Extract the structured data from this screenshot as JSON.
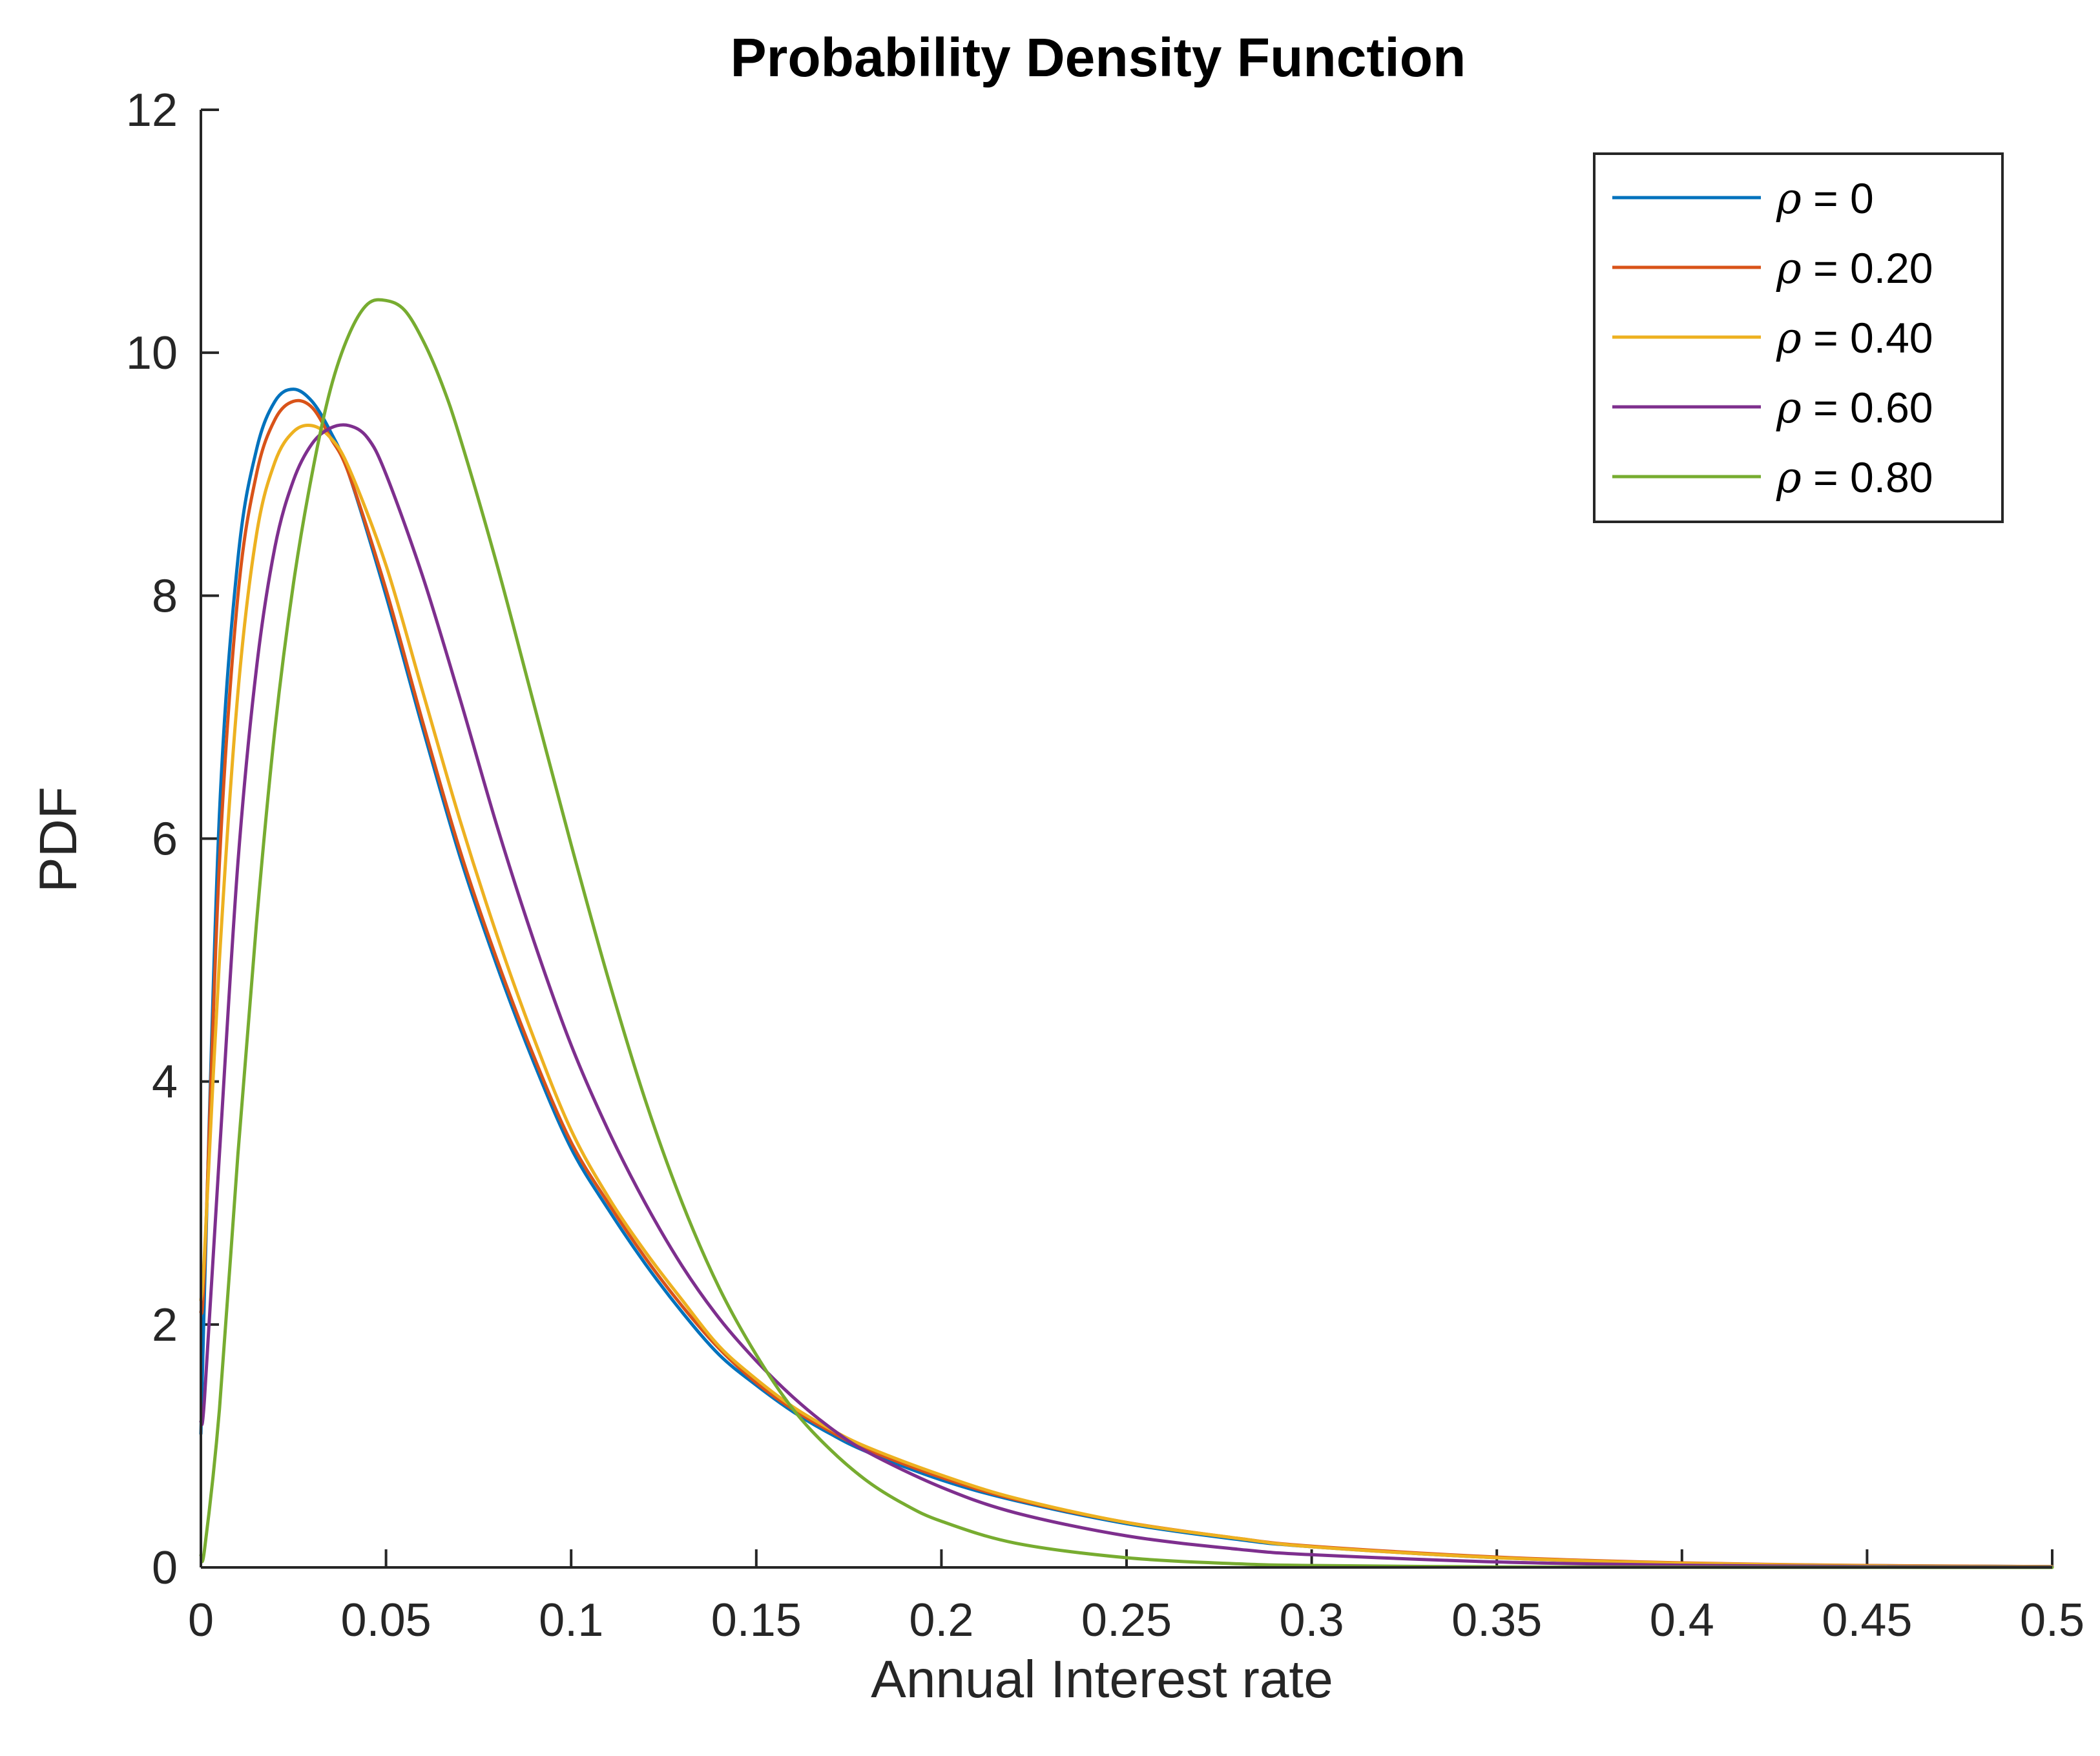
{
  "chart_data": {
    "type": "line",
    "title": "Probability Density Function",
    "xlabel": "Annual Interest rate",
    "ylabel": "PDF",
    "xlim": [
      0,
      0.5
    ],
    "ylim": [
      0,
      12
    ],
    "xticks": [
      0,
      0.05,
      0.1,
      0.15,
      0.2,
      0.25,
      0.3,
      0.35,
      0.4,
      0.45,
      0.5
    ],
    "xtick_labels": [
      "0",
      "0.05",
      "0.1",
      "0.15",
      "0.2",
      "0.25",
      "0.3",
      "0.35",
      "0.4",
      "0.45",
      "0.5"
    ],
    "yticks": [
      0,
      2,
      4,
      6,
      8,
      10,
      12
    ],
    "ytick_labels": [
      "0",
      "2",
      "4",
      "6",
      "8",
      "10",
      "12"
    ],
    "grid": false,
    "legend_position": "top-right",
    "series": [
      {
        "name": "ρ = 0",
        "label_symbol": "ρ",
        "label_value": " = 0",
        "color": "#0072BD",
        "x": [
          0,
          0.001,
          0.005,
          0.01,
          0.015,
          0.02,
          0.025,
          0.03,
          0.035,
          0.04,
          0.05,
          0.06,
          0.07,
          0.08,
          0.09,
          0.1,
          0.11,
          0.12,
          0.13,
          0.14,
          0.15,
          0.16,
          0.17,
          0.18,
          0.2,
          0.22,
          0.25,
          0.28,
          0.3,
          0.35,
          0.4,
          0.45,
          0.5
        ],
        "y": [
          1.1,
          2.3,
          6.2,
          8.3,
          9.2,
          9.6,
          9.7,
          9.6,
          9.35,
          9.0,
          8.0,
          6.9,
          5.85,
          4.95,
          4.15,
          3.45,
          2.95,
          2.5,
          2.1,
          1.75,
          1.5,
          1.28,
          1.1,
          0.95,
          0.72,
          0.55,
          0.36,
          0.23,
          0.17,
          0.08,
          0.035,
          0.015,
          0.007
        ]
      },
      {
        "name": "ρ = 0.20",
        "label_symbol": "ρ",
        "label_value": " = 0.20",
        "color": "#D95319",
        "x": [
          0,
          0.001,
          0.005,
          0.01,
          0.015,
          0.02,
          0.025,
          0.03,
          0.035,
          0.04,
          0.05,
          0.06,
          0.07,
          0.08,
          0.09,
          0.1,
          0.11,
          0.12,
          0.13,
          0.14,
          0.15,
          0.16,
          0.17,
          0.18,
          0.2,
          0.22,
          0.25,
          0.28,
          0.3,
          0.35,
          0.4,
          0.45,
          0.5
        ],
        "y": [
          2.1,
          2.5,
          5.8,
          8.0,
          9.0,
          9.45,
          9.6,
          9.55,
          9.3,
          9.0,
          8.05,
          6.95,
          5.9,
          5.0,
          4.2,
          3.5,
          3.0,
          2.55,
          2.15,
          1.8,
          1.52,
          1.3,
          1.12,
          0.97,
          0.74,
          0.56,
          0.37,
          0.24,
          0.175,
          0.085,
          0.037,
          0.016,
          0.007
        ]
      },
      {
        "name": "ρ = 0.40",
        "label_symbol": "ρ",
        "label_value": " = 0.40",
        "color": "#EDB120",
        "x": [
          0,
          0.001,
          0.005,
          0.01,
          0.015,
          0.02,
          0.025,
          0.03,
          0.035,
          0.04,
          0.05,
          0.06,
          0.07,
          0.08,
          0.09,
          0.1,
          0.11,
          0.12,
          0.13,
          0.14,
          0.15,
          0.16,
          0.17,
          0.18,
          0.2,
          0.22,
          0.25,
          0.28,
          0.3,
          0.35,
          0.4,
          0.45,
          0.5
        ],
        "y": [
          2.2,
          2.6,
          5.0,
          7.2,
          8.5,
          9.1,
          9.35,
          9.4,
          9.3,
          9.05,
          8.25,
          7.2,
          6.15,
          5.2,
          4.35,
          3.6,
          3.05,
          2.6,
          2.2,
          1.82,
          1.55,
          1.32,
          1.14,
          0.99,
          0.76,
          0.57,
          0.37,
          0.24,
          0.17,
          0.08,
          0.034,
          0.014,
          0.006
        ]
      },
      {
        "name": "ρ = 0.60",
        "label_symbol": "ρ",
        "label_value": " = 0.60",
        "color": "#7E2F8E",
        "x": [
          0,
          0.001,
          0.005,
          0.01,
          0.015,
          0.02,
          0.025,
          0.03,
          0.035,
          0.04,
          0.045,
          0.05,
          0.06,
          0.07,
          0.08,
          0.09,
          0.1,
          0.11,
          0.12,
          0.13,
          0.14,
          0.15,
          0.16,
          0.17,
          0.18,
          0.2,
          0.22,
          0.25,
          0.28,
          0.3,
          0.35,
          0.4,
          0.45,
          0.5
        ],
        "y": [
          1.2,
          1.4,
          3.4,
          5.8,
          7.4,
          8.4,
          8.95,
          9.25,
          9.38,
          9.4,
          9.3,
          9.0,
          8.15,
          7.15,
          6.1,
          5.15,
          4.3,
          3.6,
          3.0,
          2.48,
          2.05,
          1.7,
          1.4,
          1.15,
          0.95,
          0.66,
          0.45,
          0.26,
          0.15,
          0.105,
          0.045,
          0.018,
          0.007,
          0.003
        ]
      },
      {
        "name": "ρ = 0.80",
        "label_symbol": "ρ",
        "label_value": " = 0.80",
        "color": "#77AC30",
        "x": [
          0,
          0.001,
          0.005,
          0.01,
          0.015,
          0.02,
          0.025,
          0.03,
          0.035,
          0.04,
          0.045,
          0.05,
          0.055,
          0.06,
          0.065,
          0.07,
          0.08,
          0.09,
          0.1,
          0.11,
          0.12,
          0.13,
          0.14,
          0.15,
          0.16,
          0.17,
          0.18,
          0.19,
          0.2,
          0.22,
          0.25,
          0.28,
          0.3,
          0.35,
          0.4,
          0.45,
          0.5
        ],
        "y": [
          0.1,
          0.15,
          1.3,
          3.4,
          5.3,
          6.9,
          8.1,
          9.0,
          9.7,
          10.15,
          10.4,
          10.43,
          10.35,
          10.1,
          9.75,
          9.3,
          8.25,
          7.1,
          5.95,
          4.85,
          3.85,
          3.0,
          2.3,
          1.75,
          1.3,
          0.97,
          0.71,
          0.52,
          0.38,
          0.2,
          0.08,
          0.03,
          0.016,
          0.004,
          0.001,
          0.0003,
          0.0001
        ]
      }
    ]
  }
}
